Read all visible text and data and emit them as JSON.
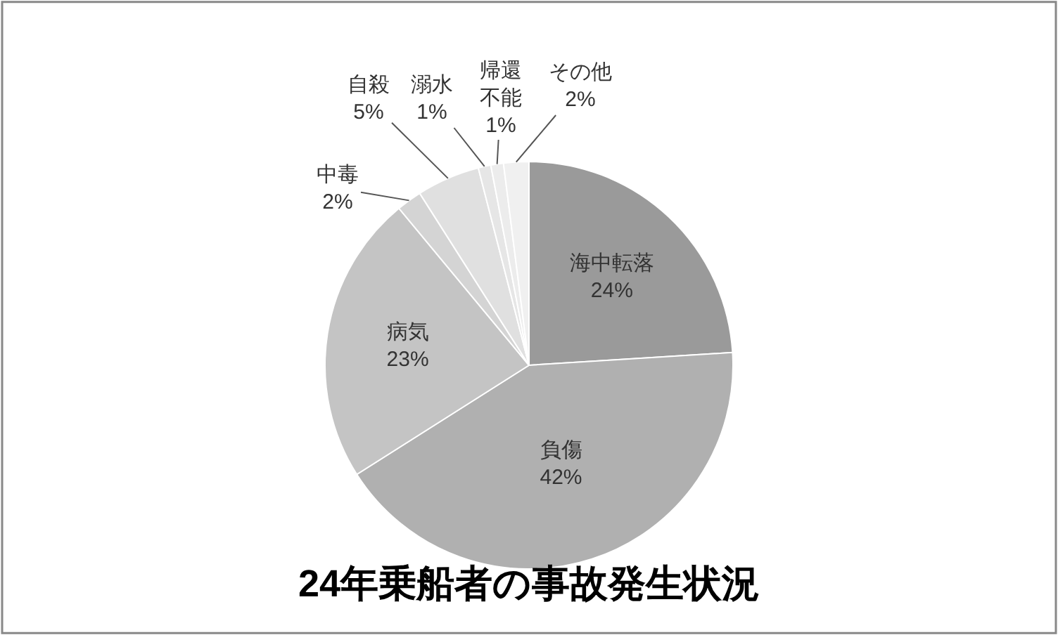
{
  "chart_data": {
    "type": "pie",
    "title": "24年乗船者の事故発生状況",
    "categories": [
      "海中転落",
      "負傷",
      "病気",
      "中毒",
      "自殺",
      "溺水",
      "帰還不能",
      "その他"
    ],
    "values": [
      24,
      42,
      23,
      2,
      5,
      1,
      1,
      2
    ],
    "value_labels": [
      "24%",
      "42%",
      "23%",
      "2%",
      "5%",
      "1%",
      "1%",
      "2%"
    ],
    "colors": [
      "#9a9a9a",
      "#b0b0b0",
      "#c4c4c4",
      "#d4d4d4",
      "#e0e0e0",
      "#e6e6e6",
      "#ececec",
      "#f0f0f0"
    ],
    "legend": false
  }
}
